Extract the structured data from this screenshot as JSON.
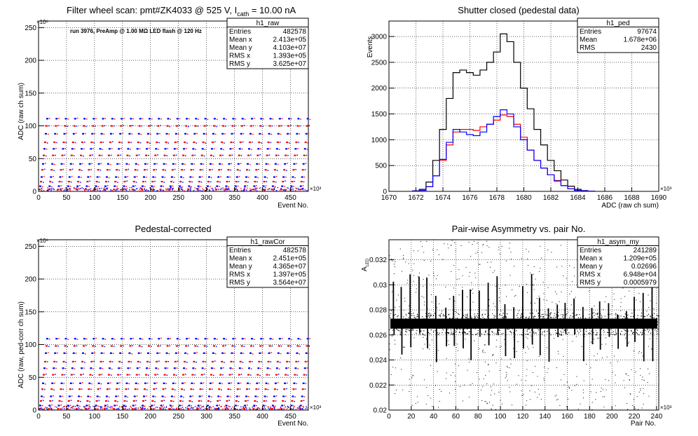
{
  "chart_data": [
    {
      "id": "raw",
      "type": "scatter",
      "title_pre": "Filter wheel scan: pmt#ZK4033 @   525 V, I",
      "title_sub": "cath",
      "title_post": " = 10.00 nA",
      "annotation": "run 3976, PreAmp @ 1.00 MΩ LED flash @  120 Hz",
      "xlabel": "Event No.",
      "ylabel": "ADC (raw ch sum)",
      "x_exp": "×10³",
      "y_exp": "×10⁶",
      "xlim": [
        0,
        482
      ],
      "ylim": [
        0,
        260
      ],
      "xticks": [
        "0",
        "50",
        "100",
        "150",
        "200",
        "250",
        "300",
        "350",
        "400",
        "450"
      ],
      "yticks": [
        "0",
        "50",
        "100",
        "150",
        "200",
        "250"
      ],
      "grid": true,
      "stats": {
        "name": "h1_raw",
        "rows": [
          [
            "Entries",
            "482578"
          ],
          [
            "Mean x",
            "2.413e+05"
          ],
          [
            "Mean y",
            "4.103e+07"
          ],
          [
            "RMS x",
            "1.393e+05"
          ],
          [
            "RMS y",
            "3.625e+07"
          ]
        ]
      },
      "series_colors": [
        "#ff0000",
        "#0000ff"
      ],
      "periods": 29,
      "levels": [
        3,
        8,
        15,
        22,
        33,
        42,
        55,
        65,
        75,
        88,
        100,
        111
      ]
    },
    {
      "id": "ped",
      "type": "line",
      "title": "Shutter closed (pedestal data)",
      "xlabel": "ADC (raw ch sum)",
      "ylabel": "Events",
      "x_exp": "×10³",
      "xlim": [
        1670,
        1690
      ],
      "ylim": [
        0,
        3300
      ],
      "xticks": [
        "1670",
        "1672",
        "1674",
        "1676",
        "1678",
        "1680",
        "1682",
        "1684",
        "1686",
        "1688",
        "1690"
      ],
      "yticks": [
        "0",
        "500",
        "1000",
        "1500",
        "2000",
        "2500",
        "3000"
      ],
      "grid": true,
      "stats": {
        "name": "h1_ped",
        "rows": [
          [
            "Entries",
            "97674"
          ],
          [
            "Mean",
            "1.678e+06"
          ],
          [
            "RMS",
            "2430"
          ]
        ]
      },
      "x": [
        1672.0,
        1672.5,
        1673.0,
        1673.5,
        1674.0,
        1674.5,
        1675.0,
        1675.5,
        1676.0,
        1676.5,
        1677.0,
        1677.5,
        1678.0,
        1678.5,
        1679.0,
        1679.5,
        1680.0,
        1680.5,
        1681.0,
        1681.5,
        1682.0,
        1682.5,
        1683.0,
        1683.5,
        1684.0,
        1684.5,
        1685.0
      ],
      "series": [
        {
          "color": "#000000",
          "values": [
            10,
            40,
            180,
            600,
            1200,
            1800,
            2300,
            2350,
            2300,
            2250,
            2350,
            2500,
            2700,
            3050,
            2900,
            2500,
            2000,
            1600,
            1200,
            900,
            600,
            400,
            220,
            100,
            40,
            15,
            5
          ]
        },
        {
          "color": "#ff0000",
          "values": [
            5,
            20,
            90,
            300,
            600,
            900,
            1150,
            1200,
            1200,
            1180,
            1250,
            1300,
            1380,
            1480,
            1450,
            1300,
            1050,
            800,
            600,
            450,
            320,
            210,
            110,
            50,
            20,
            8,
            2
          ]
        },
        {
          "color": "#0000ff",
          "values": [
            5,
            20,
            90,
            300,
            620,
            950,
            1200,
            1150,
            1100,
            1080,
            1150,
            1300,
            1450,
            1580,
            1500,
            1250,
            1000,
            800,
            600,
            450,
            320,
            200,
            110,
            50,
            20,
            8,
            2
          ]
        }
      ]
    },
    {
      "id": "rawCor",
      "type": "scatter",
      "title": "Pedestal-corrected",
      "xlabel": "Event No.",
      "ylabel": "ADC (raw, ped-corr ch sum)",
      "x_exp": "×10³",
      "y_exp": "×10⁶",
      "xlim": [
        0,
        482
      ],
      "ylim": [
        0,
        260
      ],
      "xticks": [
        "0",
        "50",
        "100",
        "150",
        "200",
        "250",
        "300",
        "350",
        "400",
        "450"
      ],
      "yticks": [
        "0",
        "50",
        "100",
        "150",
        "200",
        "250"
      ],
      "grid": true,
      "stats": {
        "name": "h1_rawCor",
        "rows": [
          [
            "Entries",
            "482578"
          ],
          [
            "Mean x",
            "2.451e+05"
          ],
          [
            "Mean y",
            "4.365e+07"
          ],
          [
            "RMS x",
            "1.397e+05"
          ],
          [
            "RMS y",
            "3.564e+07"
          ]
        ]
      },
      "series_colors": [
        "#ff0000",
        "#0000ff"
      ],
      "periods": 29,
      "levels": [
        2,
        7,
        14,
        21,
        32,
        41,
        54,
        64,
        74,
        87,
        98,
        109
      ]
    },
    {
      "id": "asym",
      "type": "scatter",
      "title": "Pair-wise Asymmetry vs. pair No.",
      "xlabel": "Pair No.",
      "ylabel": "A",
      "ylabel_sub": "LED",
      "x_exp": "×10³",
      "xlim": [
        0,
        242
      ],
      "ylim": [
        0.02,
        0.0336
      ],
      "xticks": [
        "0",
        "20",
        "40",
        "60",
        "80",
        "100",
        "120",
        "140",
        "160",
        "180",
        "200",
        "220",
        "240"
      ],
      "yticks": [
        "0.02",
        "0.022",
        "0.024",
        "0.026",
        "0.028",
        "0.03",
        "0.032"
      ],
      "grid": true,
      "stats": {
        "name": "h1_asym_my",
        "rows": [
          [
            "Entries",
            "241289"
          ],
          [
            "Mean x",
            "1.209e+05"
          ],
          [
            "Mean y",
            "0.02696"
          ],
          [
            "RMS x",
            "6.948e+04"
          ],
          [
            "RMS y",
            "0.0005979"
          ]
        ]
      },
      "band_center": 0.0269,
      "band_halfwidth": 0.0004,
      "spike_x": [
        4,
        11,
        19,
        27,
        34,
        42,
        51,
        58,
        66,
        73,
        81,
        89,
        97,
        104,
        112,
        120,
        128,
        135,
        143,
        151,
        158,
        166,
        174,
        182,
        189,
        197,
        205,
        213,
        220,
        228,
        236
      ]
    }
  ]
}
